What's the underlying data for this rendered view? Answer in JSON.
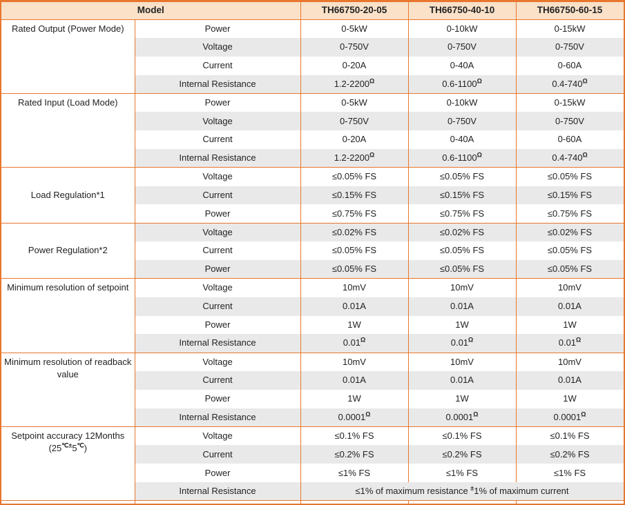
{
  "colors": {
    "accent": "#E8762C",
    "band": "#E9E9E9",
    "headerbg": "#FAE1C8"
  },
  "header": {
    "model": "Model",
    "m1": "TH66750-20-05",
    "m2": "TH66750-40-10",
    "m3": "TH66750-60-15"
  },
  "s1": {
    "group": "Rated Output (Power Mode)",
    "r1": {
      "p": "Power",
      "v1": "0-5kW",
      "v2": "0-10kW",
      "v3": "0-15kW"
    },
    "r2": {
      "p": "Voltage",
      "v1": "0-750V",
      "v2": "0-750V",
      "v3": "0-750V"
    },
    "r3": {
      "p": "Current",
      "v1": "0-20A",
      "v2": "0-40A",
      "v3": "0-60A"
    },
    "r4": {
      "p": "Internal Resistance",
      "v1": "1.2-2200",
      "v2": "0.6-1100",
      "v3": "0.4-740",
      "sup": "Ω"
    }
  },
  "s2": {
    "group": "Rated Input (Load Mode)",
    "r1": {
      "p": "Power",
      "v1": "0-5kW",
      "v2": "0-10kW",
      "v3": "0-15kW"
    },
    "r2": {
      "p": "Voltage",
      "v1": "0-750V",
      "v2": "0-750V",
      "v3": "0-750V"
    },
    "r3": {
      "p": "Current",
      "v1": "0-20A",
      "v2": "0-40A",
      "v3": "0-60A"
    },
    "r4": {
      "p": "Internal Resistance",
      "v1": "1.2-2200",
      "v2": "0.6-1100",
      "v3": "0.4-740",
      "sup": "Ω"
    }
  },
  "s3": {
    "group": "Load Regulation*1",
    "r1": {
      "p": "Voltage",
      "v1": "≤0.05% FS",
      "v2": "≤0.05% FS",
      "v3": "≤0.05% FS"
    },
    "r2": {
      "p": "Current",
      "v1": "≤0.15% FS",
      "v2": "≤0.15% FS",
      "v3": "≤0.15% FS"
    },
    "r3": {
      "p": "Power",
      "v1": "≤0.75% FS",
      "v2": "≤0.75% FS",
      "v3": "≤0.75% FS"
    }
  },
  "s4": {
    "group": "Power Regulation*2",
    "r1": {
      "p": "Voltage",
      "v1": "≤0.02% FS",
      "v2": "≤0.02% FS",
      "v3": "≤0.02% FS"
    },
    "r2": {
      "p": "Current",
      "v1": "≤0.05% FS",
      "v2": "≤0.05% FS",
      "v3": "≤0.05% FS"
    },
    "r3": {
      "p": "Power",
      "v1": "≤0.05% FS",
      "v2": "≤0.05% FS",
      "v3": "≤0.05% FS"
    }
  },
  "s5": {
    "group": "Minimum resolution of setpoint",
    "r1": {
      "p": "Voltage",
      "v1": "10mV",
      "v2": "10mV",
      "v3": "10mV"
    },
    "r2": {
      "p": "Current",
      "v1": "0.01A",
      "v2": "0.01A",
      "v3": "0.01A"
    },
    "r3": {
      "p": "Power",
      "v1": "1W",
      "v2": "1W",
      "v3": "1W"
    },
    "r4": {
      "p": "Internal Resistance",
      "v1": "0.01",
      "v2": "0.01",
      "v3": "0.01",
      "sup": "Ω"
    }
  },
  "s6": {
    "group": "Minimum resolution of readback value",
    "r1": {
      "p": "Voltage",
      "v1": "10mV",
      "v2": "10mV",
      "v3": "10mV"
    },
    "r2": {
      "p": "Current",
      "v1": "0.01A",
      "v2": "0.01A",
      "v3": "0.01A"
    },
    "r3": {
      "p": "Power",
      "v1": "1W",
      "v2": "1W",
      "v3": "1W"
    },
    "r4": {
      "p": "Internal Resistance",
      "v1": "0.0001",
      "v2": "0.0001",
      "v3": "0.0001",
      "sup": "Ω"
    }
  },
  "s7": {
    "group1": "Setpoint accuracy 12Months",
    "g2": {
      "p1": "(25",
      "s1": "℃",
      "s2": "±",
      "p2": "5",
      "s3": "℃",
      "p3": ")"
    },
    "r1": {
      "p": "Voltage",
      "v1": "≤0.1% FS",
      "v2": "≤0.1% FS",
      "v3": "≤0.1% FS"
    },
    "r2": {
      "p": "Current",
      "v1": "≤0.2% FS",
      "v2": "≤0.2% FS",
      "v3": "≤0.2% FS"
    },
    "r3": {
      "p": "Power",
      "v1": "≤1% FS",
      "v2": "≤1% FS",
      "v3": "≤1% FS"
    },
    "r4": {
      "p": "Internal Resistance",
      "t1": "≤1% of maximum resistance ",
      "s": "±",
      "t2": "1% of maximum current"
    }
  }
}
